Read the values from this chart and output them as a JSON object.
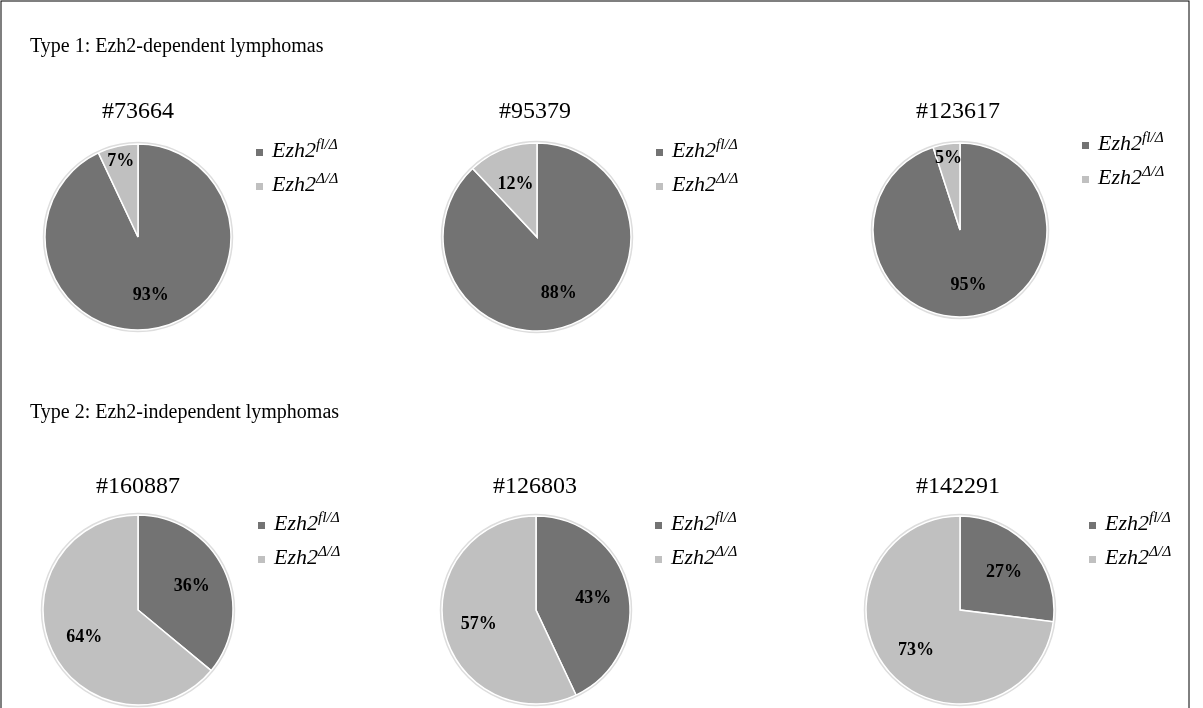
{
  "chart_data": [
    {
      "type": "pie",
      "title": "#73664",
      "annotations": [
        "Type 1: Ezh2-dependent lymphomas"
      ],
      "categories": [
        "Ezh2$^{fl/Δ}$",
        "Ezh2$^{Δ/Δ}$"
      ],
      "values": [
        93,
        7
      ],
      "value_labels": [
        "93%",
        "7%"
      ],
      "colors": [
        "#737373",
        "#c0c0c0"
      ],
      "legend": "right"
    },
    {
      "type": "pie",
      "title": "#95379",
      "categories": [
        "Ezh2$^{fl/Δ}$",
        "Ezh2$^{Δ/Δ}$"
      ],
      "values": [
        88,
        12
      ],
      "value_labels": [
        "88%",
        "12%"
      ],
      "colors": [
        "#737373",
        "#c0c0c0"
      ],
      "legend": "right"
    },
    {
      "type": "pie",
      "title": "#123617",
      "categories": [
        "Ezh2$^{fl/Δ}$",
        "Ezh2$^{Δ/Δ}$"
      ],
      "values": [
        95,
        5
      ],
      "value_labels": [
        "95%",
        "5%"
      ],
      "colors": [
        "#737373",
        "#c0c0c0"
      ],
      "legend": "right"
    },
    {
      "type": "pie",
      "title": "#160887",
      "annotations": [
        "Type 2: Ezh2-independent lymphomas"
      ],
      "categories": [
        "Ezh2$^{fl/Δ}$",
        "Ezh2$^{Δ/Δ}$"
      ],
      "values": [
        36,
        64
      ],
      "value_labels": [
        "36%",
        "64%"
      ],
      "colors": [
        "#737373",
        "#c0c0c0"
      ],
      "legend": "right"
    },
    {
      "type": "pie",
      "title": "#126803",
      "categories": [
        "Ezh2$^{fl/Δ}$",
        "Ezh2$^{Δ/Δ}$"
      ],
      "values": [
        43,
        57
      ],
      "value_labels": [
        "43%",
        "57%"
      ],
      "colors": [
        "#737373",
        "#c0c0c0"
      ],
      "legend": "right"
    },
    {
      "type": "pie",
      "title": "#142291",
      "categories": [
        "Ezh2$^{fl/Δ}$",
        "Ezh2$^{Δ/Δ}$"
      ],
      "values": [
        27,
        73
      ],
      "value_labels": [
        "27%",
        "73%"
      ],
      "colors": [
        "#737373",
        "#c0c0c0"
      ],
      "legend": "right"
    }
  ]
}
